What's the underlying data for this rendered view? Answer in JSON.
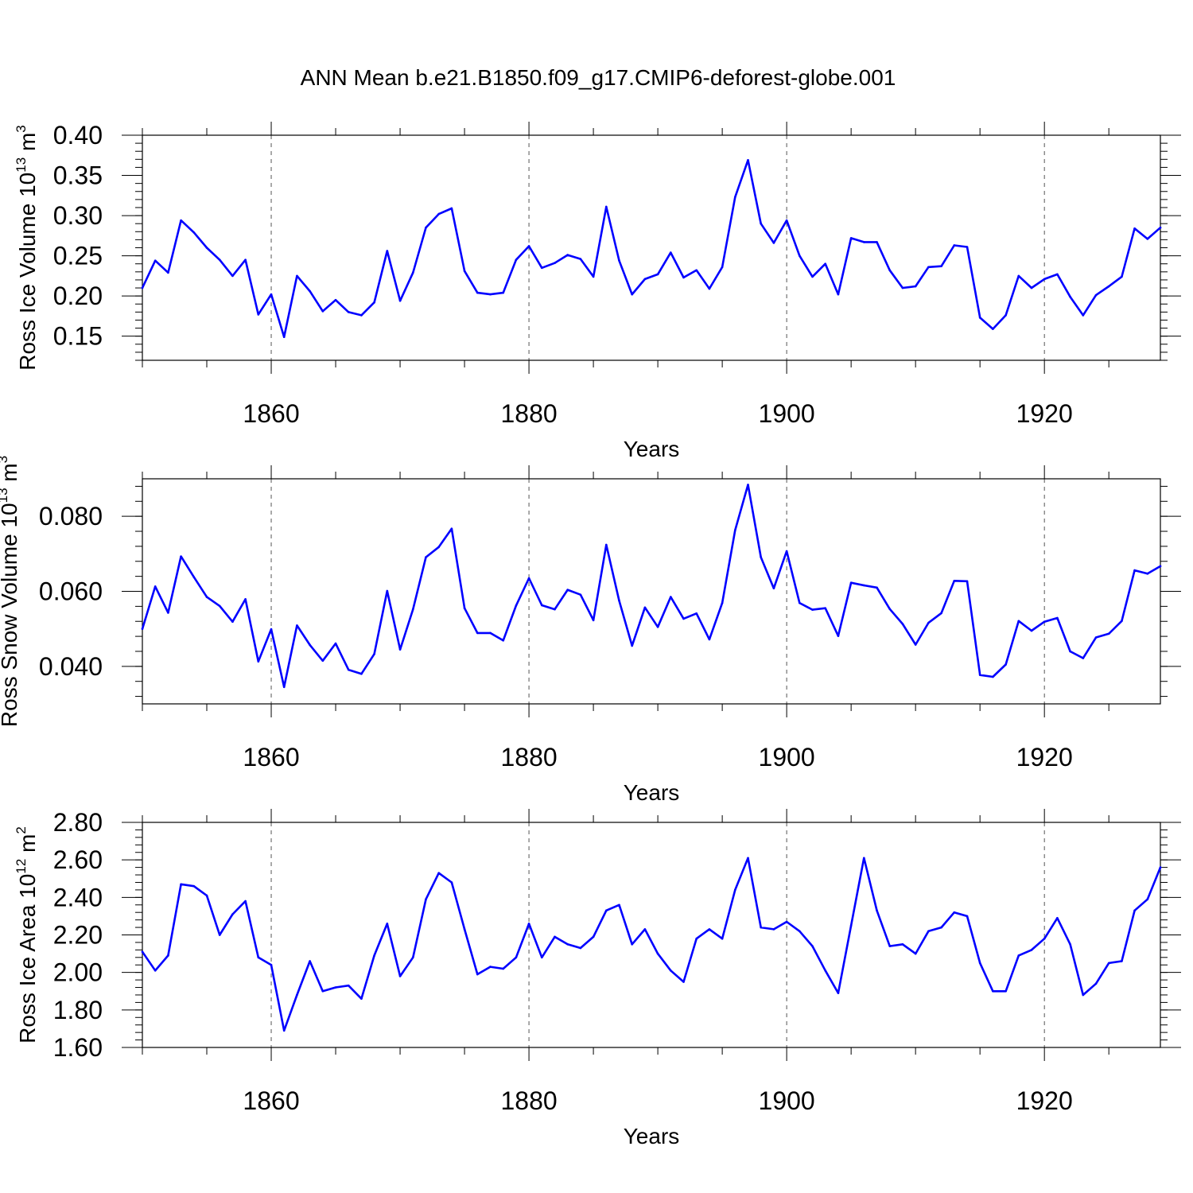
{
  "title": "ANN Mean b.e21.B1850.f09_g17.CMIP6-deforest-globe.001",
  "colors": {
    "series": "#0000ff",
    "frame": "#000000",
    "grid": "#555555"
  },
  "chart_data": [
    {
      "type": "line",
      "title": "ANN Mean b.e21.B1850.f09_g17.CMIP6-deforest-globe.001",
      "ylabel": "Ross Ice Volume 10",
      "ylabel_exp": "13",
      "ylabel_unit": " m",
      "ylabel_unit_exp": "3",
      "xlabel": "Years",
      "xlim": [
        1850,
        1929
      ],
      "ylim": [
        0.12,
        0.4
      ],
      "yticks": [
        "0.15",
        "0.20",
        "0.25",
        "0.30",
        "0.35",
        "0.40"
      ],
      "xticks": [
        "1860",
        "1880",
        "1900",
        "1920"
      ],
      "x_start": 1850,
      "values": [
        0.21,
        0.244,
        0.229,
        0.294,
        0.279,
        0.26,
        0.245,
        0.225,
        0.245,
        0.177,
        0.202,
        0.149,
        0.225,
        0.206,
        0.181,
        0.195,
        0.18,
        0.176,
        0.192,
        0.256,
        0.194,
        0.229,
        0.285,
        0.302,
        0.309,
        0.231,
        0.204,
        0.202,
        0.204,
        0.245,
        0.262,
        0.235,
        0.241,
        0.251,
        0.246,
        0.224,
        0.311,
        0.244,
        0.202,
        0.221,
        0.227,
        0.254,
        0.223,
        0.232,
        0.209,
        0.236,
        0.323,
        0.369,
        0.29,
        0.266,
        0.294,
        0.25,
        0.224,
        0.24,
        0.202,
        0.272,
        0.267,
        0.267,
        0.232,
        0.21,
        0.212,
        0.236,
        0.237,
        0.263,
        0.261,
        0.173,
        0.159,
        0.176,
        0.225,
        0.21,
        0.221,
        0.227,
        0.199,
        0.176,
        0.201,
        0.212,
        0.224,
        0.284,
        0.271,
        0.285
      ]
    },
    {
      "type": "line",
      "ylabel": "Ross Snow Volume 10",
      "ylabel_exp": "13",
      "ylabel_unit": " m",
      "ylabel_unit_exp": "3",
      "xlabel": "Years",
      "xlim": [
        1850,
        1929
      ],
      "ylim": [
        0.03,
        0.09
      ],
      "yticks": [
        "0.040",
        "0.060",
        "0.080"
      ],
      "xticks": [
        "1860",
        "1880",
        "1900",
        "1920"
      ],
      "x_start": 1850,
      "values": [
        0.05,
        0.0613,
        0.0543,
        0.0693,
        0.0638,
        0.0585,
        0.0561,
        0.0519,
        0.0579,
        0.0413,
        0.0499,
        0.0345,
        0.0509,
        0.0457,
        0.0415,
        0.0461,
        0.0391,
        0.038,
        0.0433,
        0.0601,
        0.0445,
        0.0552,
        0.0691,
        0.0718,
        0.0767,
        0.0555,
        0.0489,
        0.0489,
        0.0469,
        0.0562,
        0.0635,
        0.0563,
        0.0552,
        0.0604,
        0.0591,
        0.0523,
        0.0724,
        0.0575,
        0.0455,
        0.0557,
        0.0505,
        0.0585,
        0.0527,
        0.0541,
        0.0472,
        0.0569,
        0.0763,
        0.0884,
        0.0691,
        0.0608,
        0.0707,
        0.0569,
        0.0551,
        0.0555,
        0.0481,
        0.0623,
        0.0616,
        0.061,
        0.0553,
        0.0513,
        0.0458,
        0.0516,
        0.0542,
        0.0628,
        0.0627,
        0.0377,
        0.0372,
        0.0405,
        0.0521,
        0.0495,
        0.0519,
        0.0529,
        0.044,
        0.0422,
        0.0477,
        0.0487,
        0.0521,
        0.0656,
        0.0647,
        0.0667
      ]
    },
    {
      "type": "line",
      "ylabel": "Ross Ice Area 10",
      "ylabel_exp": "12",
      "ylabel_unit": " m",
      "ylabel_unit_exp": "2",
      "xlabel": "Years",
      "xlim": [
        1850,
        1929
      ],
      "ylim": [
        1.6,
        2.8
      ],
      "yticks": [
        "1.60",
        "1.80",
        "2.00",
        "2.20",
        "2.40",
        "2.60",
        "2.80"
      ],
      "xticks": [
        "1860",
        "1880",
        "1900",
        "1920"
      ],
      "x_start": 1850,
      "values": [
        2.11,
        2.01,
        2.09,
        2.47,
        2.46,
        2.41,
        2.2,
        2.31,
        2.38,
        2.08,
        2.04,
        1.69,
        1.88,
        2.06,
        1.9,
        1.92,
        1.93,
        1.86,
        2.09,
        2.26,
        1.98,
        2.08,
        2.39,
        2.53,
        2.48,
        2.23,
        1.99,
        2.03,
        2.02,
        2.08,
        2.26,
        2.08,
        2.19,
        2.15,
        2.13,
        2.19,
        2.33,
        2.36,
        2.15,
        2.23,
        2.1,
        2.01,
        1.95,
        2.18,
        2.23,
        2.18,
        2.44,
        2.61,
        2.24,
        2.23,
        2.27,
        2.22,
        2.14,
        2.01,
        1.89,
        2.25,
        2.61,
        2.33,
        2.14,
        2.15,
        2.1,
        2.22,
        2.24,
        2.32,
        2.3,
        2.05,
        1.9,
        1.9,
        2.09,
        2.12,
        2.18,
        2.29,
        2.15,
        1.88,
        1.94,
        2.05,
        2.06,
        2.33,
        2.39,
        2.56
      ]
    }
  ]
}
